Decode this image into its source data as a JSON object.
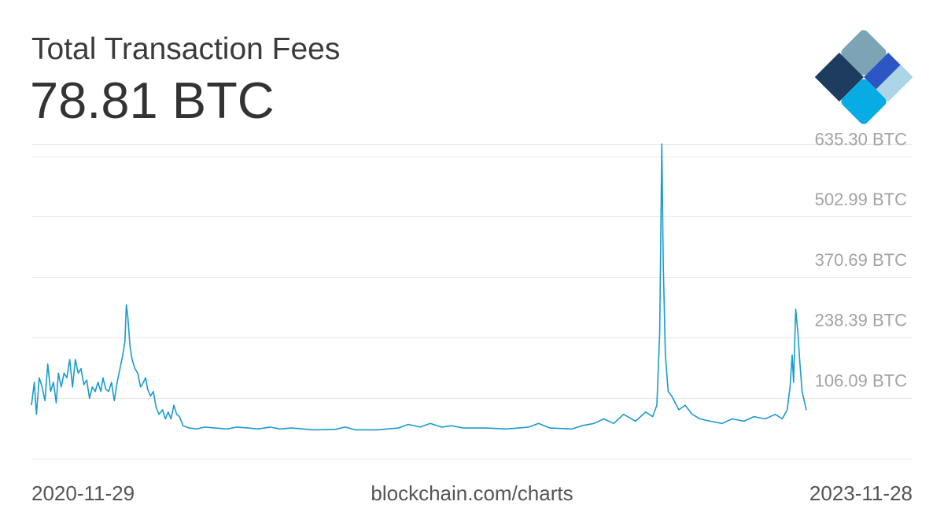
{
  "header": {
    "title": "Total Transaction Fees",
    "value": "78.81 BTC"
  },
  "logo": {
    "icon": "blockchain-logo-icon",
    "colors": [
      "#7ca4b4",
      "#1d3c5e",
      "#2c56c3",
      "#acd6e7",
      "#08ace4"
    ]
  },
  "footer": {
    "start_date": "2020-11-29",
    "source": "blockchain.com/charts",
    "end_date": "2023-11-28"
  },
  "colors": {
    "line": "#1a9bcf",
    "grid": "#e6e6e6",
    "tick": "#a3a3a3",
    "title": "#3b3b3b"
  },
  "chart_data": {
    "type": "line",
    "title": "Total Transaction Fees",
    "xlabel": "",
    "ylabel": "",
    "x_range": [
      "2020-11-29",
      "2023-11-28"
    ],
    "ylim": [
      -27,
      662
    ],
    "yticks": [
      106.09,
      238.39,
      370.69,
      502.99,
      635.3
    ],
    "ytick_labels": [
      "106.09 BTC",
      "238.39 BTC",
      "370.69 BTC",
      "502.99 BTC",
      "635.30 BTC"
    ],
    "grid": true,
    "legend": "none",
    "series": [
      {
        "color": "#1a9bcf",
        "points": [
          [
            "2020-11-29",
            90
          ],
          [
            "2020-12-03",
            140
          ],
          [
            "2020-12-06",
            70
          ],
          [
            "2020-12-10",
            150
          ],
          [
            "2020-12-14",
            130
          ],
          [
            "2020-12-18",
            100
          ],
          [
            "2020-12-22",
            180
          ],
          [
            "2020-12-26",
            120
          ],
          [
            "2020-12-30",
            140
          ],
          [
            "2021-01-03",
            95
          ],
          [
            "2021-01-06",
            160
          ],
          [
            "2021-01-10",
            130
          ],
          [
            "2021-01-14",
            160
          ],
          [
            "2021-01-18",
            150
          ],
          [
            "2021-01-22",
            190
          ],
          [
            "2021-01-26",
            130
          ],
          [
            "2021-01-30",
            190
          ],
          [
            "2021-02-03",
            160
          ],
          [
            "2021-02-07",
            170
          ],
          [
            "2021-02-11",
            135
          ],
          [
            "2021-02-15",
            145
          ],
          [
            "2021-02-19",
            105
          ],
          [
            "2021-02-23",
            130
          ],
          [
            "2021-02-27",
            120
          ],
          [
            "2021-03-03",
            140
          ],
          [
            "2021-03-07",
            120
          ],
          [
            "2021-03-10",
            150
          ],
          [
            "2021-03-14",
            125
          ],
          [
            "2021-03-18",
            120
          ],
          [
            "2021-03-22",
            140
          ],
          [
            "2021-03-26",
            100
          ],
          [
            "2021-03-30",
            140
          ],
          [
            "2021-04-03",
            170
          ],
          [
            "2021-04-07",
            200
          ],
          [
            "2021-04-10",
            230
          ],
          [
            "2021-04-12",
            310
          ],
          [
            "2021-04-14",
            285
          ],
          [
            "2021-04-17",
            220
          ],
          [
            "2021-04-20",
            190
          ],
          [
            "2021-04-24",
            170
          ],
          [
            "2021-04-28",
            160
          ],
          [
            "2021-05-02",
            130
          ],
          [
            "2021-05-06",
            140
          ],
          [
            "2021-05-09",
            150
          ],
          [
            "2021-05-12",
            125
          ],
          [
            "2021-05-16",
            110
          ],
          [
            "2021-05-20",
            120
          ],
          [
            "2021-05-24",
            85
          ],
          [
            "2021-05-28",
            70
          ],
          [
            "2021-06-02",
            80
          ],
          [
            "2021-06-06",
            60
          ],
          [
            "2021-06-10",
            75
          ],
          [
            "2021-06-14",
            60
          ],
          [
            "2021-06-18",
            90
          ],
          [
            "2021-06-22",
            70
          ],
          [
            "2021-06-26",
            65
          ],
          [
            "2021-07-01",
            45
          ],
          [
            "2021-07-10",
            40
          ],
          [
            "2021-07-20",
            38
          ],
          [
            "2021-08-01",
            42
          ],
          [
            "2021-08-15",
            40
          ],
          [
            "2021-09-01",
            38
          ],
          [
            "2021-09-15",
            42
          ],
          [
            "2021-10-01",
            40
          ],
          [
            "2021-10-15",
            38
          ],
          [
            "2021-11-01",
            42
          ],
          [
            "2021-11-15",
            38
          ],
          [
            "2021-12-01",
            40
          ],
          [
            "2022-01-01",
            36
          ],
          [
            "2022-02-01",
            37
          ],
          [
            "2022-02-15",
            42
          ],
          [
            "2022-03-01",
            36
          ],
          [
            "2022-04-01",
            36
          ],
          [
            "2022-05-01",
            40
          ],
          [
            "2022-05-15",
            48
          ],
          [
            "2022-06-01",
            42
          ],
          [
            "2022-06-15",
            50
          ],
          [
            "2022-07-01",
            42
          ],
          [
            "2022-07-15",
            45
          ],
          [
            "2022-08-01",
            40
          ],
          [
            "2022-09-01",
            40
          ],
          [
            "2022-10-01",
            38
          ],
          [
            "2022-11-01",
            42
          ],
          [
            "2022-11-15",
            50
          ],
          [
            "2022-12-01",
            40
          ],
          [
            "2023-01-01",
            38
          ],
          [
            "2023-01-15",
            45
          ],
          [
            "2023-02-01",
            50
          ],
          [
            "2023-02-15",
            60
          ],
          [
            "2023-03-01",
            50
          ],
          [
            "2023-03-15",
            70
          ],
          [
            "2023-04-01",
            55
          ],
          [
            "2023-04-15",
            75
          ],
          [
            "2023-04-25",
            65
          ],
          [
            "2023-05-01",
            90
          ],
          [
            "2023-05-05",
            250
          ],
          [
            "2023-05-08",
            662
          ],
          [
            "2023-05-10",
            400
          ],
          [
            "2023-05-13",
            200
          ],
          [
            "2023-05-17",
            120
          ],
          [
            "2023-05-22",
            110
          ],
          [
            "2023-06-01",
            80
          ],
          [
            "2023-06-10",
            90
          ],
          [
            "2023-06-20",
            70
          ],
          [
            "2023-07-01",
            60
          ],
          [
            "2023-07-15",
            55
          ],
          [
            "2023-08-01",
            50
          ],
          [
            "2023-08-15",
            60
          ],
          [
            "2023-09-01",
            55
          ],
          [
            "2023-09-15",
            65
          ],
          [
            "2023-10-01",
            60
          ],
          [
            "2023-10-15",
            70
          ],
          [
            "2023-10-25",
            60
          ],
          [
            "2023-11-01",
            80
          ],
          [
            "2023-11-05",
            130
          ],
          [
            "2023-11-08",
            200
          ],
          [
            "2023-11-10",
            140
          ],
          [
            "2023-11-13",
            300
          ],
          [
            "2023-11-16",
            250
          ],
          [
            "2023-11-19",
            180
          ],
          [
            "2023-11-22",
            120
          ],
          [
            "2023-11-25",
            100
          ],
          [
            "2023-11-28",
            78.81
          ]
        ]
      }
    ]
  }
}
